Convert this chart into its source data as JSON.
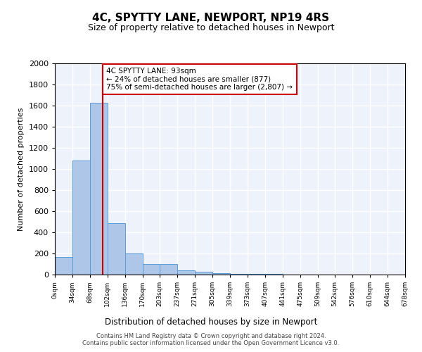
{
  "title": "4C, SPYTTY LANE, NEWPORT, NP19 4RS",
  "subtitle": "Size of property relative to detached houses in Newport",
  "xlabel": "Distribution of detached houses by size in Newport",
  "ylabel": "Number of detached properties",
  "bar_color": "#aec6e8",
  "bar_edge_color": "#5b9bd5",
  "bg_color": "#eef3fb",
  "grid_color": "#ffffff",
  "annotation_box_color": "#cc0000",
  "annotation_line1": "4C SPYTTY LANE: 93sqm",
  "annotation_line2": "← 24% of detached houses are smaller (877)",
  "annotation_line3": "75% of semi-detached houses are larger (2,807) →",
  "vline_x": 93,
  "vline_color": "#cc0000",
  "footnote": "Contains HM Land Registry data © Crown copyright and database right 2024.\nContains public sector information licensed under the Open Government Licence v3.0.",
  "bin_edges": [
    0,
    34,
    68,
    102,
    136,
    170,
    203,
    237,
    271,
    305,
    339,
    373,
    407,
    441,
    475,
    509,
    542,
    576,
    610,
    644,
    678
  ],
  "bar_heights": [
    165,
    1080,
    1630,
    490,
    200,
    100,
    100,
    40,
    25,
    15,
    10,
    10,
    10,
    0,
    0,
    0,
    0,
    0,
    0,
    0
  ],
  "tick_labels": [
    "0sqm",
    "34sqm",
    "68sqm",
    "102sqm",
    "136sqm",
    "170sqm",
    "203sqm",
    "237sqm",
    "271sqm",
    "305sqm",
    "339sqm",
    "373sqm",
    "407sqm",
    "441sqm",
    "475sqm",
    "509sqm",
    "542sqm",
    "576sqm",
    "610sqm",
    "644sqm",
    "678sqm"
  ],
  "ylim": [
    0,
    2000
  ],
  "yticks": [
    0,
    200,
    400,
    600,
    800,
    1000,
    1200,
    1400,
    1600,
    1800,
    2000
  ]
}
